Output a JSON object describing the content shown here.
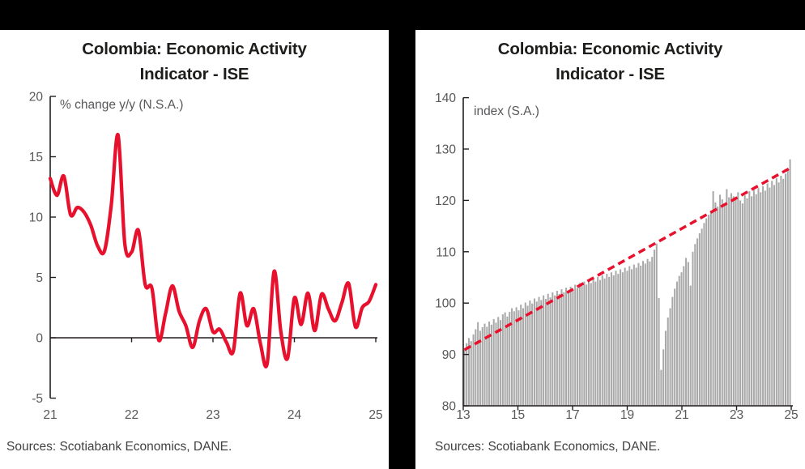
{
  "colors": {
    "accent_red": "#e8112d",
    "bar_gray": "#a9a9a9",
    "axis": "#231f20",
    "tick_text": "#57585a",
    "sources_text": "#414141",
    "frame_black": "#000000",
    "background": "#ffffff"
  },
  "panels": [
    {
      "title_line1": "Colombia: Economic Activity",
      "title_line2": "Indicator - ISE",
      "unit_label": "% change y/y (N.S.A.)",
      "sources": "Sources: Scotiabank Economics, DANE."
    },
    {
      "title_line1": "Colombia: Economic Activity",
      "title_line2": "Indicator - ISE",
      "unit_label": "index (S.A.)",
      "sources": "Sources: Scotiabank Economics, DANE."
    }
  ],
  "chart_data": [
    {
      "type": "line",
      "title": "Colombia: Economic Activity Indicator - ISE",
      "ylabel": "% change y/y (N.S.A.)",
      "frequency": "monthly",
      "x_start": "2021-01",
      "x_end": "2025-01",
      "values": [
        13.2,
        11.8,
        13.4,
        10.2,
        10.8,
        10.4,
        9.3,
        7.6,
        7.2,
        11.0,
        16.8,
        7.8,
        7.1,
        8.9,
        4.4,
        4.1,
        -0.2,
        2.0,
        4.3,
        2.2,
        1.0,
        -0.8,
        1.4,
        2.4,
        0.5,
        0.7,
        -0.4,
        -1.1,
        3.7,
        1.0,
        2.4,
        -0.5,
        -2.1,
        5.5,
        0.5,
        -1.7,
        3.3,
        1.1,
        3.7,
        0.6,
        3.6,
        2.4,
        1.4,
        2.9,
        4.5,
        0.9,
        2.5,
        3.0,
        4.4
      ],
      "xticks": [
        21,
        22,
        23,
        24,
        25
      ],
      "yticks": [
        -5,
        0,
        5,
        10,
        15,
        20
      ],
      "ylim": [
        -5,
        20
      ],
      "grid": false,
      "line_color": "#e8112d"
    },
    {
      "type": "bar",
      "title": "Colombia: Economic Activity Indicator - ISE",
      "ylabel": "index (S.A.)",
      "frequency": "monthly",
      "x_start": "2013-01",
      "x_end": "2025-01",
      "values": [
        91.0,
        92.2,
        93.2,
        92.6,
        93.9,
        94.9,
        96.3,
        94.6,
        95.3,
        96.0,
        95.4,
        96.4,
        95.8,
        96.9,
        96.2,
        97.3,
        96.7,
        97.8,
        98.2,
        97.4,
        98.3,
        99.0,
        98.4,
        99.2,
        98.6,
        99.7,
        99.0,
        100.1,
        99.5,
        100.5,
        99.9,
        100.9,
        100.3,
        101.2,
        100.6,
        101.5,
        100.8,
        101.8,
        101.1,
        102.1,
        101.5,
        102.4,
        101.8,
        102.7,
        102.1,
        103.0,
        102.4,
        103.2,
        102.6,
        103.6,
        102.9,
        103.9,
        103.3,
        104.2,
        103.6,
        104.5,
        103.9,
        104.8,
        104.2,
        105.1,
        104.5,
        105.4,
        104.8,
        105.7,
        105.1,
        106.0,
        105.4,
        106.3,
        105.7,
        106.6,
        106.0,
        106.9,
        106.3,
        107.2,
        106.6,
        107.5,
        106.9,
        107.8,
        107.3,
        108.2,
        107.7,
        108.6,
        108.1,
        109.0,
        110.4,
        111.6,
        101.0,
        87.0,
        91.0,
        94.6,
        97.2,
        99.0,
        101.2,
        102.8,
        104.2,
        105.3,
        106.0,
        107.2,
        108.8,
        108.0,
        103.4,
        110.0,
        111.5,
        112.6,
        113.6,
        114.5,
        115.6,
        116.5,
        117.2,
        118.0,
        121.8,
        119.6,
        118.8,
        121.1,
        120.2,
        119.4,
        122.2,
        120.6,
        121.4,
        120.8,
        120.2,
        121.6,
        120.0,
        119.4,
        121.0,
        120.4,
        121.8,
        120.8,
        122.0,
        121.2,
        122.4,
        121.6,
        122.8,
        121.9,
        123.3,
        122.5,
        123.8,
        123.0,
        124.3,
        123.5,
        124.8,
        124.2,
        125.2,
        126.2,
        128.0
      ],
      "xticks": [
        13,
        15,
        17,
        19,
        21,
        23,
        25
      ],
      "yticks": [
        80,
        90,
        100,
        110,
        120,
        130,
        140
      ],
      "ylim": [
        80,
        140
      ],
      "grid": false,
      "bar_color": "#a9a9a9",
      "trend_line": {
        "style": "dashed",
        "color": "#e8112d",
        "start_value": 90.9,
        "end_value": 126.3
      }
    }
  ]
}
